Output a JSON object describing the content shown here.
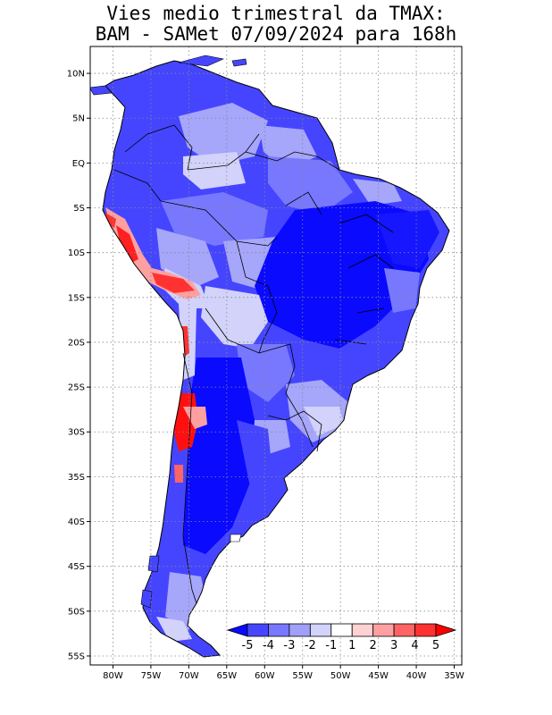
{
  "title": {
    "line1": "Vies medio trimestral da TMAX:",
    "line2": "BAM - SAMet 07/09/2024  para 168h"
  },
  "map_extent": {
    "lon": [
      -83,
      -34
    ],
    "lat": [
      -56,
      13
    ]
  },
  "lat_ticks": [
    {
      "label": "10N",
      "lat": 10
    },
    {
      "label": "5N",
      "lat": 5
    },
    {
      "label": "EQ",
      "lat": 0
    },
    {
      "label": "5S",
      "lat": -5
    },
    {
      "label": "10S",
      "lat": -10
    },
    {
      "label": "15S",
      "lat": -15
    },
    {
      "label": "20S",
      "lat": -20
    },
    {
      "label": "25S",
      "lat": -25
    },
    {
      "label": "30S",
      "lat": -30
    },
    {
      "label": "35S",
      "lat": -35
    },
    {
      "label": "40S",
      "lat": -40
    },
    {
      "label": "45S",
      "lat": -45
    },
    {
      "label": "50S",
      "lat": -50
    },
    {
      "label": "55S",
      "lat": -55
    }
  ],
  "lon_ticks": [
    {
      "label": "80W",
      "lon": -80
    },
    {
      "label": "75W",
      "lon": -75
    },
    {
      "label": "70W",
      "lon": -70
    },
    {
      "label": "65W",
      "lon": -65
    },
    {
      "label": "60W",
      "lon": -60
    },
    {
      "label": "55W",
      "lon": -55
    },
    {
      "label": "50W",
      "lon": -50
    },
    {
      "label": "45W",
      "lon": -45
    },
    {
      "label": "40W",
      "lon": -40
    },
    {
      "label": "35W",
      "lon": -35
    }
  ],
  "colorbar": {
    "labels": [
      "-5",
      "-4",
      "-3",
      "-2",
      "-1",
      "1",
      "2",
      "3",
      "4",
      "5"
    ],
    "colors": [
      "#0a0aff",
      "#4646ff",
      "#7878ff",
      "#a0a0f8",
      "#d2d2fa",
      "#ffffff",
      "#ffd2d2",
      "#ffa0a0",
      "#ff6464",
      "#ff3232",
      "#ff0000"
    ]
  }
}
